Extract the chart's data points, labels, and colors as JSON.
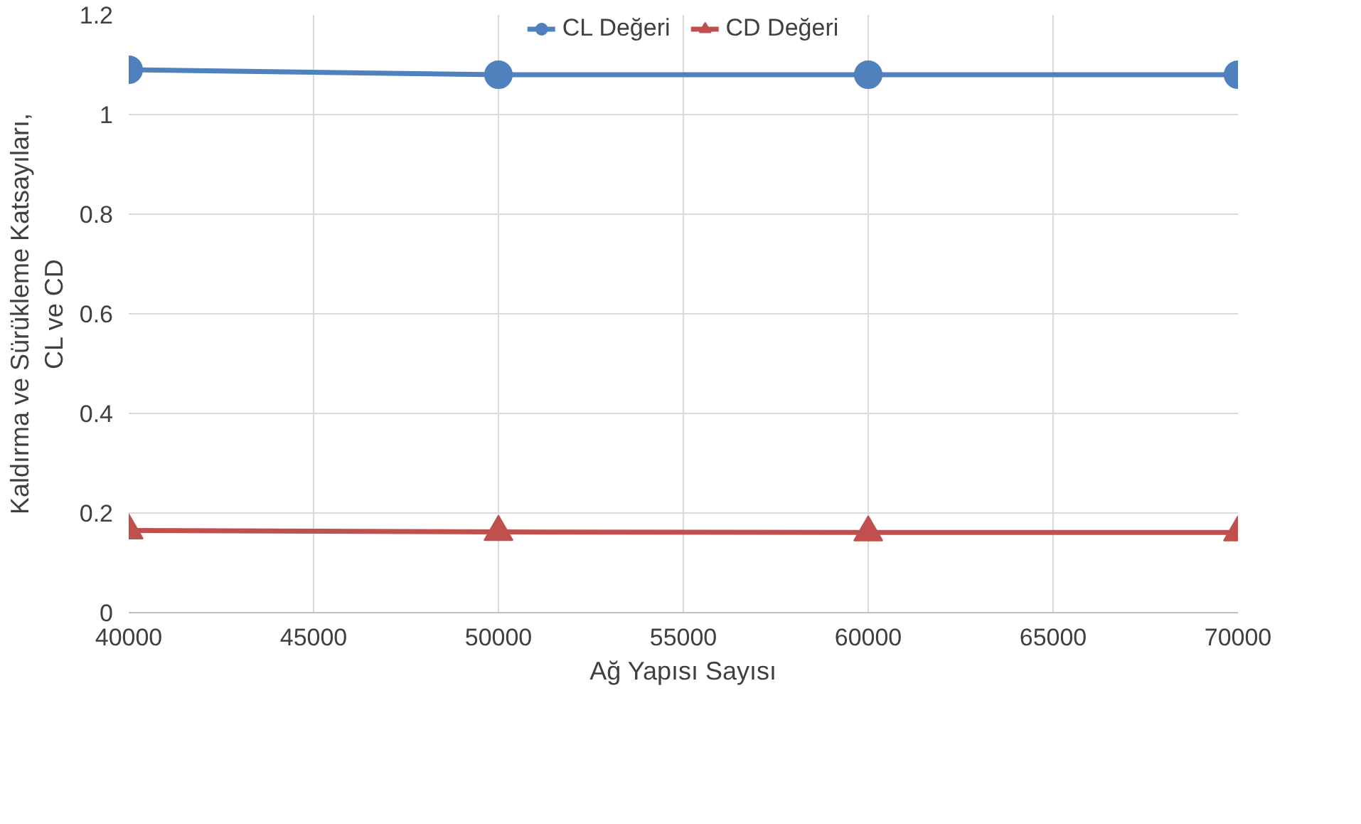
{
  "chart_data": {
    "type": "line",
    "xlabel": "Ağ Yapısı Sayısı",
    "ylabel": "Kaldırma ve Sürükleme Katsayıları,\nCL ve CD",
    "x": [
      40000,
      50000,
      60000,
      70000
    ],
    "series": [
      {
        "name": "CL Değeri",
        "color": "#4f81bd",
        "marker": "circle",
        "values": [
          1.09,
          1.08,
          1.08,
          1.08
        ]
      },
      {
        "name": "CD Değeri",
        "color": "#c0504d",
        "marker": "triangle",
        "values": [
          0.165,
          0.162,
          0.161,
          0.161
        ]
      }
    ],
    "xlim": [
      40000,
      70000
    ],
    "xticks": [
      40000,
      45000,
      50000,
      55000,
      60000,
      65000,
      70000
    ],
    "ylim": [
      0,
      1.2
    ],
    "yticks": [
      0,
      {
        "value": 0.2,
        "label": "0.2"
      },
      {
        "value": 0.4,
        "label": "0.4"
      },
      {
        "value": 0.6,
        "label": "0.6"
      },
      {
        "value": 0.8,
        "label": "0.8"
      },
      1,
      {
        "value": 1.2,
        "label": "1.2"
      }
    ],
    "grid": true,
    "legend": "top",
    "line_style": "solid"
  }
}
